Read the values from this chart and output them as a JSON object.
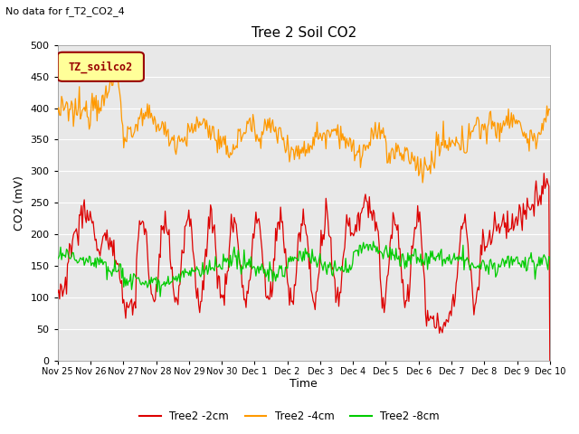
{
  "title": "Tree 2 Soil CO2",
  "subtitle": "No data for f_T2_CO2_4",
  "ylabel": "CO2 (mV)",
  "xlabel": "Time",
  "ylim": [
    0,
    500
  ],
  "yticks": [
    0,
    50,
    100,
    150,
    200,
    250,
    300,
    350,
    400,
    450,
    500
  ],
  "xtick_labels": [
    "Nov 25",
    "Nov 26",
    "Nov 27",
    "Nov 28",
    "Nov 29",
    "Nov 30",
    "Dec 1",
    "Dec 2",
    "Dec 3",
    "Dec 4",
    "Dec 5",
    "Dec 6",
    "Dec 7",
    "Dec 8",
    "Dec 9",
    "Dec 10"
  ],
  "series_colors": [
    "#dd0000",
    "#ff9900",
    "#00cc00"
  ],
  "series_labels": [
    "Tree2 -2cm",
    "Tree2 -4cm",
    "Tree2 -8cm"
  ],
  "legend_box_color": "#ffff99",
  "legend_box_label": "TZ_soilco2",
  "legend_box_border": "#990000",
  "background_color": "#e8e8e8",
  "grid_color": "#ffffff",
  "title_fontsize": 11,
  "axis_fontsize": 9,
  "tick_fontsize": 8,
  "subtitle_fontsize": 8
}
